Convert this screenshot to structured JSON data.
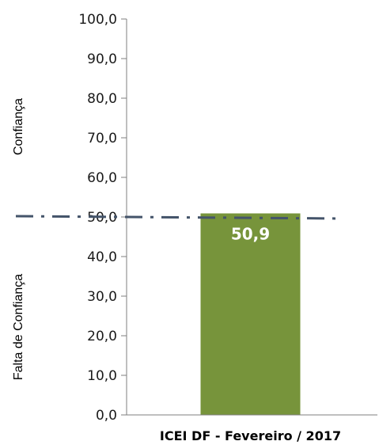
{
  "chart_data": {
    "type": "bar",
    "categories": [
      "ICEI DF - Fevereiro / 2017"
    ],
    "values": [
      50.9
    ],
    "data_labels": [
      "50,9"
    ],
    "ylim": [
      0,
      100
    ],
    "yticks": [
      0,
      10,
      20,
      30,
      40,
      50,
      60,
      70,
      80,
      90,
      100
    ],
    "ytick_labels": [
      "0,0",
      "10,0",
      "20,0",
      "30,0",
      "40,0",
      "50,0",
      "60,0",
      "70,0",
      "80,0",
      "90,0",
      "100,0"
    ],
    "reference_line": {
      "value": 50,
      "style": "dash-dot"
    },
    "side_labels": {
      "upper": "Confiança",
      "lower": "Falta de  Confiança"
    },
    "grid": false,
    "legend": "none",
    "colors": {
      "bar": "#77943b",
      "reference_line": "#44546a",
      "axis": "#7f7f7f"
    }
  }
}
